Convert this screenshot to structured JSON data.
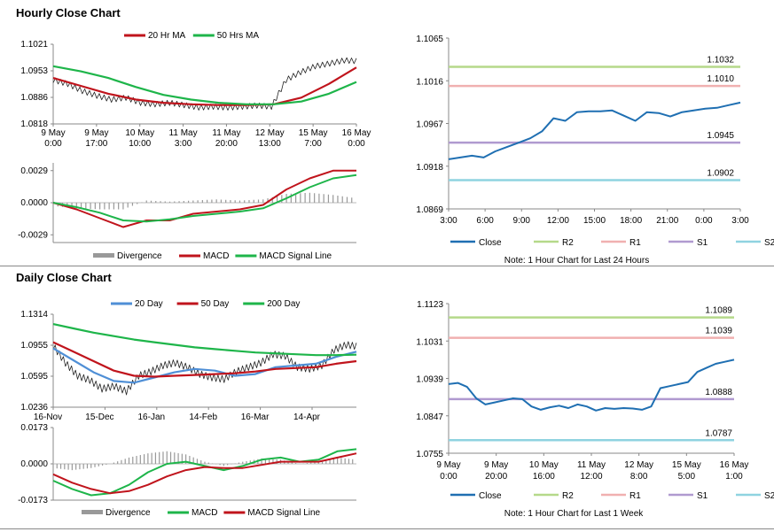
{
  "sections": {
    "hourly_title": "Hourly Close Chart",
    "daily_title": "Daily Close Chart"
  },
  "colors": {
    "close": "#1f6fb2",
    "ma_red": "#c0141c",
    "ma_green": "#1eb54a",
    "ma_blue": "#4f8fd6",
    "r2": "#b5d98a",
    "r1": "#f0b0b0",
    "s1": "#b09ad0",
    "s2": "#8fd3e0",
    "divergence": "#999999"
  },
  "chart_data": [
    {
      "id": "hourly-price",
      "type": "line",
      "title": "",
      "legend": [
        "20 Hr MA",
        "50 Hrs MA"
      ],
      "y_ticks": [
        "1.1021",
        "1.0953",
        "1.0886",
        "1.0818"
      ],
      "ylim": [
        1.0818,
        1.1021
      ],
      "x_ticks": [
        "9 May\n0:00",
        "9 May\n17:00",
        "10 May\n10:00",
        "11 May\n3:00",
        "11 May\n20:00",
        "12 May\n13:00",
        "15 May\n7:00",
        "16 May\n0:00"
      ],
      "series": [
        {
          "name": "20 Hr MA",
          "color": "#c0141c",
          "values": [
            1.0935,
            1.0915,
            1.0895,
            1.088,
            1.0872,
            1.0868,
            1.0866,
            1.0866,
            1.0868,
            1.0885,
            1.092,
            1.0962
          ]
        },
        {
          "name": "50 Hrs MA",
          "color": "#1eb54a",
          "values": [
            1.0965,
            1.0952,
            1.0935,
            1.0912,
            1.0892,
            1.088,
            1.0872,
            1.0868,
            1.0868,
            1.0875,
            1.0895,
            1.0925
          ]
        }
      ],
      "close": [
        1.093,
        1.092,
        1.0902,
        1.089,
        1.088,
        1.0885,
        1.0872,
        1.0868,
        1.0872,
        1.0866,
        1.086,
        1.0862,
        1.086,
        1.0862,
        1.0865,
        1.0862,
        1.093,
        1.095,
        1.0965,
        1.0972,
        1.098,
        1.0978
      ]
    },
    {
      "id": "hourly-macd",
      "type": "line",
      "title": "",
      "legend": [
        "Divergence",
        "MACD",
        "MACD Signal Line"
      ],
      "y_ticks": [
        "0.0029",
        "0.0000",
        "-0.0029"
      ],
      "ylim": [
        -0.0036,
        0.0036
      ],
      "series": [
        {
          "name": "MACD",
          "color": "#c0141c",
          "values": [
            0.0,
            -0.0006,
            -0.0014,
            -0.0022,
            -0.0016,
            -0.0016,
            -0.001,
            -0.0008,
            -0.0006,
            -0.0002,
            0.0012,
            0.0022,
            0.0029,
            0.0029
          ]
        },
        {
          "name": "MACD Signal Line",
          "color": "#1eb54a",
          "values": [
            0.0,
            -0.0004,
            -0.0009,
            -0.0016,
            -0.0017,
            -0.0015,
            -0.0012,
            -0.001,
            -0.0008,
            -0.0005,
            0.0004,
            0.0014,
            0.0022,
            0.0025
          ]
        }
      ],
      "divergence": [
        -0.0003,
        -0.0005,
        -0.0006,
        -0.0006,
        0.0002,
        0.0001,
        0.0002,
        0.0003,
        0.0002,
        0.0003,
        0.0008,
        0.0009,
        0.0007,
        0.0004
      ]
    },
    {
      "id": "hourly-pivot",
      "type": "line",
      "title": "",
      "y_ticks": [
        "1.1065",
        "1.1016",
        "1.0967",
        "1.0918",
        "1.0869"
      ],
      "ylim": [
        1.0869,
        1.1065
      ],
      "x_ticks": [
        "3:00",
        "6:00",
        "9:00",
        "12:00",
        "15:00",
        "18:00",
        "21:00",
        "0:00",
        "3:00"
      ],
      "levels": [
        {
          "name": "R2",
          "value": 1.1032,
          "label": "1.1032",
          "color": "#b5d98a"
        },
        {
          "name": "R1",
          "value": 1.101,
          "label": "1.1010",
          "color": "#f0b0b0"
        },
        {
          "name": "S1",
          "value": 1.0945,
          "label": "1.0945",
          "color": "#b09ad0"
        },
        {
          "name": "S2",
          "value": 1.0902,
          "label": "1.0902",
          "color": "#8fd3e0"
        }
      ],
      "close": [
        1.0926,
        1.0928,
        1.093,
        1.0928,
        1.0935,
        1.094,
        1.0945,
        1.095,
        1.0958,
        1.0973,
        1.097,
        1.098,
        1.0981,
        1.0981,
        1.0982,
        1.0976,
        1.097,
        1.098,
        1.0979,
        1.0975,
        1.098,
        1.0982,
        1.0984,
        1.0985,
        1.0988,
        1.0991
      ],
      "legend": [
        "Close",
        "R2",
        "R1",
        "S1",
        "S2"
      ],
      "note": "Note: 1 Hour Chart for Last 24 Hours"
    },
    {
      "id": "daily-price",
      "type": "line",
      "title": "",
      "legend": [
        "20 Day",
        "50 Day",
        "200 Day"
      ],
      "y_ticks": [
        "1.1314",
        "1.0955",
        "1.0595",
        "1.0236"
      ],
      "ylim": [
        1.0236,
        1.1314
      ],
      "x_ticks": [
        "16-Nov",
        "15-Dec",
        "16-Jan",
        "14-Feb",
        "16-Mar",
        "14-Apr"
      ],
      "series": [
        {
          "name": "20 Day",
          "color": "#4f8fd6",
          "values": [
            1.092,
            1.078,
            1.064,
            1.054,
            1.052,
            1.058,
            1.064,
            1.068,
            1.066,
            1.06,
            1.062,
            1.07,
            1.072,
            1.074,
            1.082,
            1.088
          ]
        },
        {
          "name": "50 Day",
          "color": "#c0141c",
          "values": [
            1.099,
            1.088,
            1.077,
            1.066,
            1.06,
            1.059,
            1.06,
            1.061,
            1.062,
            1.063,
            1.065,
            1.068,
            1.069,
            1.07,
            1.074,
            1.077
          ]
        },
        {
          "name": "200 Day",
          "color": "#1eb54a",
          "values": [
            1.12,
            1.115,
            1.11,
            1.106,
            1.102,
            1.099,
            1.096,
            1.093,
            1.091,
            1.089,
            1.087,
            1.086,
            1.085,
            1.084,
            1.084,
            1.0845
          ]
        }
      ],
      "close": [
        1.095,
        1.075,
        1.06,
        1.055,
        1.045,
        1.048,
        1.042,
        1.06,
        1.065,
        1.072,
        1.075,
        1.07,
        1.062,
        1.058,
        1.056,
        1.065,
        1.07,
        1.075,
        1.085,
        1.083,
        1.07,
        1.068,
        1.072,
        1.09,
        1.096,
        1.094
      ]
    },
    {
      "id": "daily-macd",
      "type": "line",
      "title": "",
      "legend": [
        "Divergence",
        "MACD",
        "MACD Signal Line"
      ],
      "y_ticks": [
        "0.0173",
        "0.0000",
        "-0.0173"
      ],
      "ylim": [
        -0.0173,
        0.0173
      ],
      "series": [
        {
          "name": "MACD",
          "color": "#1eb54a",
          "values": [
            -0.008,
            -0.012,
            -0.015,
            -0.014,
            -0.01,
            -0.004,
            0.0,
            0.001,
            -0.001,
            -0.003,
            -0.001,
            0.002,
            0.003,
            0.001,
            0.002,
            0.006,
            0.007
          ]
        },
        {
          "name": "MACD Signal Line",
          "color": "#c0141c",
          "values": [
            -0.005,
            -0.009,
            -0.012,
            -0.014,
            -0.013,
            -0.01,
            -0.006,
            -0.003,
            -0.0015,
            -0.002,
            -0.002,
            -0.0005,
            0.001,
            0.001,
            0.001,
            0.003,
            0.005
          ]
        }
      ],
      "divergence": [
        -0.002,
        -0.003,
        -0.002,
        0.0,
        0.003,
        0.005,
        0.006,
        0.0045,
        0.001,
        -0.001,
        0.001,
        0.0025,
        0.002,
        0.0,
        0.001,
        0.003,
        0.002
      ]
    },
    {
      "id": "daily-pivot",
      "type": "line",
      "title": "",
      "y_ticks": [
        "1.1123",
        "1.1031",
        "1.0939",
        "1.0847",
        "1.0755"
      ],
      "ylim": [
        1.0755,
        1.1123
      ],
      "x_ticks": [
        "9 May\n0:00",
        "9 May\n20:00",
        "10 May\n16:00",
        "11 May\n12:00",
        "12 May\n8:00",
        "15 May\n5:00",
        "16 May\n1:00"
      ],
      "levels": [
        {
          "name": "R2",
          "value": 1.1089,
          "label": "1.1089",
          "color": "#b5d98a"
        },
        {
          "name": "R1",
          "value": 1.1039,
          "label": "1.1039",
          "color": "#f0b0b0"
        },
        {
          "name": "S1",
          "value": 1.0888,
          "label": "1.0888",
          "color": "#b09ad0"
        },
        {
          "name": "S2",
          "value": 1.0787,
          "label": "1.0787",
          "color": "#8fd3e0"
        }
      ],
      "close": [
        1.0925,
        1.0928,
        1.0918,
        1.089,
        1.0875,
        1.088,
        1.0885,
        1.089,
        1.0888,
        1.087,
        1.0862,
        1.0868,
        1.0872,
        1.0866,
        1.0875,
        1.087,
        1.086,
        1.0866,
        1.0864,
        1.0866,
        1.0865,
        1.0862,
        1.087,
        1.0915,
        1.092,
        1.0925,
        1.093,
        1.0955,
        1.0965,
        1.0975,
        1.098,
        1.0985
      ],
      "legend": [
        "Close",
        "R2",
        "R1",
        "S1",
        "S2"
      ],
      "note": "Note: 1 Hour Chart for Last 1 Week"
    }
  ]
}
